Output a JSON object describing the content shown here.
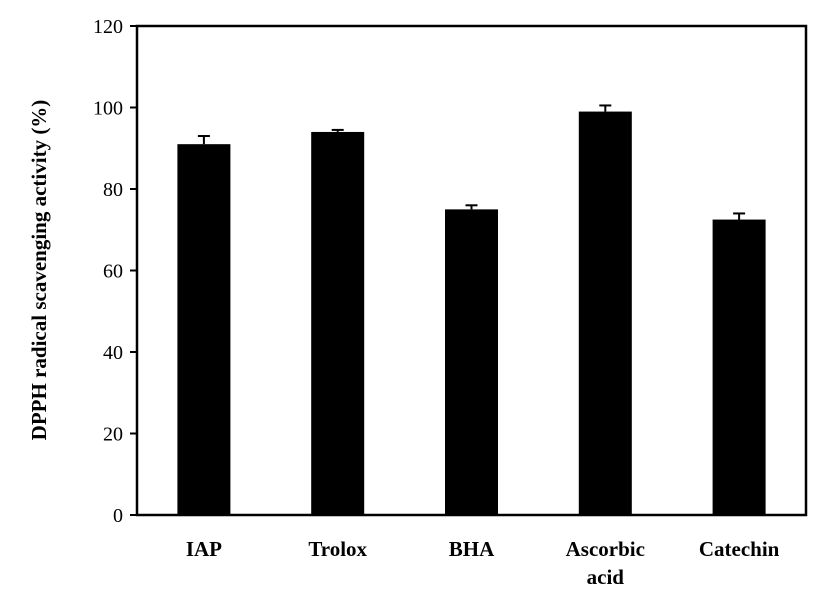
{
  "chart_data": {
    "type": "bar",
    "categories": [
      [
        "IAP"
      ],
      [
        "Trolox"
      ],
      [
        "BHA"
      ],
      [
        "Ascorbic",
        "acid"
      ],
      [
        "Catechin"
      ]
    ],
    "values": [
      91,
      94,
      75,
      99,
      72.5
    ],
    "errors": [
      2,
      0.5,
      1,
      1.5,
      1.5
    ],
    "title": "",
    "xlabel": "",
    "ylabel": "DPPH radical scavenging activity (%)",
    "ylim": [
      0,
      120
    ],
    "yticks": [
      0,
      20,
      40,
      60,
      80,
      100,
      120
    ],
    "grid": false,
    "bar_color": "#000000"
  }
}
